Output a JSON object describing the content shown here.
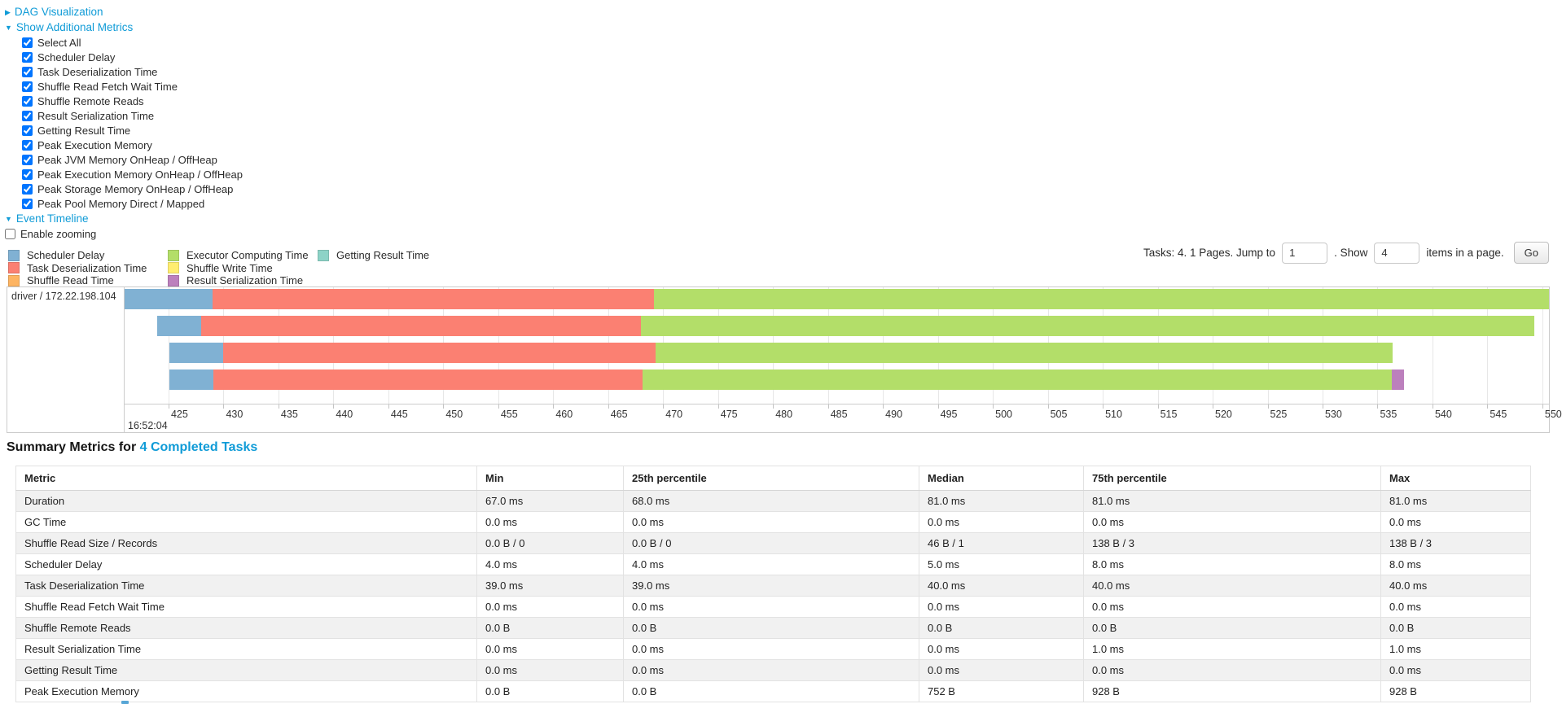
{
  "colors": {
    "link": "#0f9bd7",
    "scheduler_delay": "#80B1D3",
    "task_deserialization": "#FB8072",
    "shuffle_read": "#FDB462",
    "executor_computing": "#B3DE69",
    "shuffle_write": "#FFED6F",
    "result_serialization": "#BC80BD",
    "getting_result": "#8DD3C7"
  },
  "toggles": {
    "dag": "DAG Visualization",
    "additional_metrics": "Show Additional Metrics",
    "event_timeline": "Event Timeline",
    "enable_zooming": "Enable zooming"
  },
  "metric_checkboxes": [
    "Select All",
    "Scheduler Delay",
    "Task Deserialization Time",
    "Shuffle Read Fetch Wait Time",
    "Shuffle Remote Reads",
    "Result Serialization Time",
    "Getting Result Time",
    "Peak Execution Memory",
    "Peak JVM Memory OnHeap / OffHeap",
    "Peak Execution Memory OnHeap / OffHeap",
    "Peak Storage Memory OnHeap / OffHeap",
    "Peak Pool Memory Direct / Mapped"
  ],
  "legend": {
    "columns": [
      [
        {
          "label": "Scheduler Delay",
          "color_key": "scheduler_delay"
        },
        {
          "label": "Task Deserialization Time",
          "color_key": "task_deserialization"
        },
        {
          "label": "Shuffle Read Time",
          "color_key": "shuffle_read"
        }
      ],
      [
        {
          "label": "Executor Computing Time",
          "color_key": "executor_computing"
        },
        {
          "label": "Shuffle Write Time",
          "color_key": "shuffle_write"
        },
        {
          "label": "Result Serialization Time",
          "color_key": "result_serialization"
        }
      ],
      [
        {
          "label": "Getting Result Time",
          "color_key": "getting_result"
        }
      ]
    ]
  },
  "pagination": {
    "tasks_text": "Tasks: 4. 1 Pages. Jump to",
    "jump_value": "1",
    "show_text": ". Show",
    "show_value": "4",
    "items_text": "items in a page.",
    "go_label": "Go"
  },
  "timeline": {
    "row_label": "driver / 172.22.198.104",
    "axis_min": 421.0,
    "axis_max": 550.6,
    "ticks": [
      425,
      430,
      435,
      440,
      445,
      450,
      455,
      460,
      465,
      470,
      475,
      480,
      485,
      490,
      495,
      500,
      505,
      510,
      515,
      520,
      525,
      530,
      535,
      540,
      545,
      550
    ],
    "major_tick_label": "16:52:04",
    "tasks": [
      {
        "segments": [
          {
            "type": "scheduler_delay",
            "start": 421.0,
            "end": 429.0
          },
          {
            "type": "task_deserialization",
            "start": 429.0,
            "end": 469.2
          },
          {
            "type": "executor_computing",
            "start": 469.2,
            "end": 550.6
          }
        ]
      },
      {
        "segments": [
          {
            "type": "scheduler_delay",
            "start": 424.0,
            "end": 428.0
          },
          {
            "type": "task_deserialization",
            "start": 428.0,
            "end": 468.0
          },
          {
            "type": "executor_computing",
            "start": 468.0,
            "end": 549.3
          }
        ]
      },
      {
        "segments": [
          {
            "type": "scheduler_delay",
            "start": 425.1,
            "end": 430.0
          },
          {
            "type": "task_deserialization",
            "start": 430.0,
            "end": 469.3
          },
          {
            "type": "executor_computing",
            "start": 469.3,
            "end": 536.4
          }
        ]
      },
      {
        "segments": [
          {
            "type": "scheduler_delay",
            "start": 425.1,
            "end": 429.1
          },
          {
            "type": "task_deserialization",
            "start": 429.1,
            "end": 468.1
          },
          {
            "type": "executor_computing",
            "start": 468.1,
            "end": 536.3
          },
          {
            "type": "result_serialization",
            "start": 536.3,
            "end": 537.4
          }
        ]
      }
    ]
  },
  "summary": {
    "title_prefix": "Summary Metrics for",
    "title_link": "4 Completed Tasks",
    "headers": [
      "Metric",
      "Min",
      "25th percentile",
      "Median",
      "75th percentile",
      "Max"
    ],
    "rows": [
      [
        "Duration",
        "67.0 ms",
        "68.0 ms",
        "81.0 ms",
        "81.0 ms",
        "81.0 ms"
      ],
      [
        "GC Time",
        "0.0 ms",
        "0.0 ms",
        "0.0 ms",
        "0.0 ms",
        "0.0 ms"
      ],
      [
        "Shuffle Read Size / Records",
        "0.0 B / 0",
        "0.0 B / 0",
        "46 B / 1",
        "138 B / 3",
        "138 B / 3"
      ],
      [
        "Scheduler Delay",
        "4.0 ms",
        "4.0 ms",
        "5.0 ms",
        "8.0 ms",
        "8.0 ms"
      ],
      [
        "Task Deserialization Time",
        "39.0 ms",
        "39.0 ms",
        "40.0 ms",
        "40.0 ms",
        "40.0 ms"
      ],
      [
        "Shuffle Read Fetch Wait Time",
        "0.0 ms",
        "0.0 ms",
        "0.0 ms",
        "0.0 ms",
        "0.0 ms"
      ],
      [
        "Shuffle Remote Reads",
        "0.0 B",
        "0.0 B",
        "0.0 B",
        "0.0 B",
        "0.0 B"
      ],
      [
        "Result Serialization Time",
        "0.0 ms",
        "0.0 ms",
        "0.0 ms",
        "1.0 ms",
        "1.0 ms"
      ],
      [
        "Getting Result Time",
        "0.0 ms",
        "0.0 ms",
        "0.0 ms",
        "0.0 ms",
        "0.0 ms"
      ],
      [
        "Peak Execution Memory",
        "0.0 B",
        "0.0 B",
        "752 B",
        "928 B",
        "928 B"
      ]
    ]
  }
}
